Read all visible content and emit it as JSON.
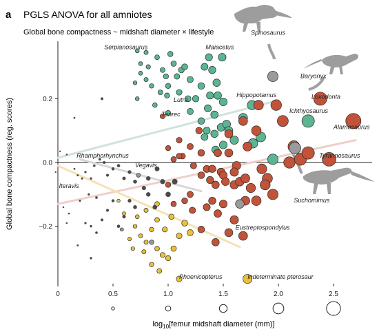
{
  "panel": {
    "letter": "a",
    "title": "PGLS  ANOVA for all amniotes",
    "subtitle": "Global bone compactness ~ midshaft diameter × lifestyle"
  },
  "chart_data": {
    "type": "scatter",
    "xlabel_pre": "log",
    "xlabel_sub": "10",
    "xlabel_post": "[femur midshaft diameter (mm)]",
    "ylabel": "Global bone compactness (reg. scores)",
    "xlim": [
      0,
      2.85
    ],
    "ylim": [
      -0.38,
      0.38
    ],
    "x_ticks": [
      "0",
      "0.5",
      "1.0",
      "1.5",
      "2.0",
      "2.5"
    ],
    "x_tick_values": [
      0,
      0.5,
      1.0,
      1.5,
      2.0,
      2.5
    ],
    "y_ticks": [
      "0.2",
      "0.0",
      "−0.2"
    ],
    "y_tick_values": [
      0.2,
      0.0,
      -0.2
    ],
    "zero_line": true,
    "size_legend": [
      0.5,
      1.0,
      1.5,
      2.0,
      2.5
    ],
    "colors": {
      "aquatic": "#5bb592",
      "semi": "#c0533a",
      "terrestrial": "#4a4a4a",
      "flying": "#e9c03a",
      "grey": "#9a9a9a"
    },
    "regression_lines": [
      {
        "group": "aquatic",
        "color": "#cfe3db",
        "x1": 0.0,
        "y1": 0.015,
        "x2": 2.0,
        "y2": 0.195
      },
      {
        "group": "semi",
        "color": "#efcfc7",
        "x1": 0.0,
        "y1": -0.13,
        "x2": 2.7,
        "y2": 0.07
      },
      {
        "group": "terrestrial",
        "color": "#d7d7d7",
        "x1": 0.2,
        "y1": 0.01,
        "x2": 1.3,
        "y2": -0.09
      },
      {
        "group": "flying",
        "color": "#f4e2b5",
        "x1": 0.0,
        "y1": -0.01,
        "x2": 1.65,
        "y2": -0.265
      }
    ],
    "labels": [
      {
        "text": "Serpianosaurus",
        "x": 0.42,
        "y": 0.355
      },
      {
        "text": "Maiacetus",
        "x": 1.34,
        "y": 0.355
      },
      {
        "text": "Spinosaurus",
        "x": 1.75,
        "y": 0.4
      },
      {
        "text": "Baryonyx",
        "x": 2.2,
        "y": 0.265
      },
      {
        "text": "Lutra",
        "x": 1.05,
        "y": 0.19
      },
      {
        "text": "Hippopotamus",
        "x": 1.62,
        "y": 0.205
      },
      {
        "text": "Loxodonta",
        "x": 2.3,
        "y": 0.2
      },
      {
        "text": "Tenrec",
        "x": 0.94,
        "y": 0.145
      },
      {
        "text": "Ichthyosaurus",
        "x": 2.1,
        "y": 0.155
      },
      {
        "text": "Alamosaurus",
        "x": 2.5,
        "y": 0.105
      },
      {
        "text": "Rhamphorhynchus",
        "x": 0.17,
        "y": 0.015
      },
      {
        "text": "Tyrannosaurus",
        "x": 2.37,
        "y": 0.015
      },
      {
        "text": "Vegavis",
        "x": 0.7,
        "y": -0.015
      },
      {
        "text": "Iteravis",
        "x": 0.01,
        "y": -0.08
      },
      {
        "text": "Suchomimus",
        "x": 2.14,
        "y": -0.125
      },
      {
        "text": "Eustreptospondylus",
        "x": 1.61,
        "y": -0.21
      },
      {
        "text": "Phoenicopterus",
        "x": 1.1,
        "y": -0.365
      },
      {
        "text": "Indeterminate pterosaur",
        "x": 1.72,
        "y": -0.365
      }
    ],
    "series": [
      {
        "name": "",
        "group": "aquatic",
        "points": [
          [
            0.72,
            0.35
          ],
          [
            0.75,
            0.31
          ],
          [
            0.8,
            0.345
          ],
          [
            0.82,
            0.3
          ],
          [
            0.75,
            0.28
          ],
          [
            0.7,
            0.25
          ],
          [
            0.8,
            0.26
          ],
          [
            0.85,
            0.24
          ],
          [
            0.9,
            0.33
          ],
          [
            0.95,
            0.29
          ],
          [
            0.93,
            0.22
          ],
          [
            0.72,
            0.2
          ],
          [
            0.88,
            0.18
          ],
          [
            0.98,
            0.27
          ],
          [
            1.0,
            0.24
          ],
          [
            1.05,
            0.31
          ],
          [
            1.08,
            0.27
          ],
          [
            1.02,
            0.34
          ],
          [
            1.1,
            0.22
          ],
          [
            1.12,
            0.29
          ],
          [
            1.15,
            0.3
          ],
          [
            1.2,
            0.26
          ],
          [
            1.25,
            0.2
          ],
          [
            1.3,
            0.24
          ],
          [
            1.33,
            0.3
          ],
          [
            1.37,
            0.33
          ],
          [
            1.4,
            0.29
          ],
          [
            1.44,
            0.25
          ],
          [
            1.49,
            0.33
          ],
          [
            1.38,
            0.21
          ],
          [
            1.45,
            0.21
          ],
          [
            1.5,
            0.19
          ],
          [
            1.36,
            0.17
          ],
          [
            1.42,
            0.15
          ],
          [
            1.2,
            0.16
          ],
          [
            1.18,
            0.2
          ],
          [
            1.3,
            0.13
          ],
          [
            1.35,
            0.1
          ],
          [
            1.33,
            0.08
          ],
          [
            1.42,
            0.09
          ],
          [
            1.48,
            0.11
          ],
          [
            1.53,
            0.12
          ],
          [
            1.55,
            0.1
          ],
          [
            1.5,
            0.055
          ],
          [
            1.43,
            0.04
          ],
          [
            1.6,
            0.07
          ],
          [
            1.68,
            0.14
          ],
          [
            1.76,
            0.18
          ],
          [
            1.84,
            0.08
          ],
          [
            1.77,
            0.06
          ],
          [
            1.95,
            0.01
          ],
          [
            2.27,
            0.13
          ],
          [
            0.99,
            0.21
          ],
          [
            1.0,
            0.155
          ]
        ]
      },
      {
        "name": "",
        "group": "semi",
        "points": [
          [
            0.95,
            0.145
          ],
          [
            1.0,
            0.045
          ],
          [
            1.05,
            0.01
          ],
          [
            1.1,
            0.07
          ],
          [
            1.13,
            0.02
          ],
          [
            1.2,
            0.05
          ],
          [
            1.23,
            -0.01
          ],
          [
            1.28,
            0.1
          ],
          [
            1.3,
            0.03
          ],
          [
            1.35,
            -0.02
          ],
          [
            1.38,
            -0.055
          ],
          [
            1.43,
            -0.07
          ],
          [
            1.48,
            -0.03
          ],
          [
            1.5,
            -0.04
          ],
          [
            1.55,
            0.03
          ],
          [
            1.6,
            -0.07
          ],
          [
            1.65,
            -0.06
          ],
          [
            1.7,
            -0.05
          ],
          [
            1.75,
            -0.08
          ],
          [
            1.68,
            0.13
          ],
          [
            1.72,
            0.05
          ],
          [
            1.8,
            0.1
          ],
          [
            1.82,
            0.18
          ],
          [
            1.9,
            -0.05
          ],
          [
            1.98,
            0.18
          ],
          [
            2.04,
            0.13
          ],
          [
            2.1,
            0.0
          ],
          [
            2.14,
            0.05
          ],
          [
            2.2,
            0.01
          ],
          [
            2.27,
            0.03
          ],
          [
            2.38,
            0.2
          ],
          [
            2.46,
            0.01
          ],
          [
            2.68,
            0.13
          ],
          [
            1.55,
            0.09
          ],
          [
            1.62,
            -0.01
          ],
          [
            1.85,
            -0.02
          ],
          [
            1.95,
            -0.1
          ],
          [
            1.35,
            -0.14
          ],
          [
            1.45,
            -0.16
          ],
          [
            1.3,
            -0.21
          ],
          [
            1.4,
            -0.12
          ],
          [
            1.5,
            -0.13
          ],
          [
            1.6,
            -0.18
          ],
          [
            1.7,
            -0.12
          ],
          [
            1.8,
            -0.12
          ],
          [
            1.88,
            -0.07
          ],
          [
            1.68,
            -0.23
          ],
          [
            1.55,
            -0.22
          ],
          [
            1.43,
            -0.25
          ],
          [
            1.6,
            -0.03
          ],
          [
            1.0,
            -0.07
          ],
          [
            1.05,
            -0.13
          ],
          [
            1.2,
            -0.1
          ],
          [
            1.22,
            -0.15
          ],
          [
            1.15,
            -0.12
          ],
          [
            1.1,
            0.02
          ],
          [
            1.3,
            -0.04
          ],
          [
            1.4,
            -0.02
          ],
          [
            1.45,
            0.03
          ],
          [
            1.52,
            -0.06
          ]
        ]
      },
      {
        "name": "",
        "group": "terrestrial",
        "points": [
          [
            0.02,
            0.035
          ],
          [
            0.08,
            0.025
          ],
          [
            0.15,
            -0.02
          ],
          [
            0.18,
            -0.04
          ],
          [
            0.22,
            -0.05
          ],
          [
            0.25,
            -0.03
          ],
          [
            0.3,
            -0.05
          ],
          [
            0.33,
            -0.01
          ],
          [
            0.38,
            0.01
          ],
          [
            0.42,
            0.0
          ],
          [
            0.45,
            -0.04
          ],
          [
            0.5,
            -0.02
          ],
          [
            0.55,
            -0.01
          ],
          [
            0.6,
            -0.05
          ],
          [
            0.65,
            -0.03
          ],
          [
            0.7,
            -0.06
          ],
          [
            0.78,
            -0.08
          ],
          [
            0.82,
            -0.05
          ],
          [
            0.9,
            -0.02
          ],
          [
            0.95,
            -0.06
          ],
          [
            1.0,
            -0.1
          ],
          [
            1.06,
            -0.06
          ],
          [
            0.25,
            -0.19
          ],
          [
            0.3,
            -0.2
          ],
          [
            0.35,
            -0.22
          ],
          [
            0.4,
            -0.18
          ],
          [
            0.45,
            -0.15
          ],
          [
            0.5,
            -0.12
          ],
          [
            0.55,
            -0.2
          ],
          [
            0.6,
            -0.17
          ],
          [
            0.65,
            -0.12
          ],
          [
            0.08,
            -0.19
          ],
          [
            0.18,
            -0.26
          ],
          [
            0.3,
            -0.3
          ],
          [
            0.4,
            0.2
          ],
          [
            0.15,
            0.14
          ],
          [
            -0.02,
            -0.03
          ],
          [
            0.05,
            -0.14
          ],
          [
            0.1,
            -0.16
          ],
          [
            0.28,
            -0.1
          ],
          [
            0.35,
            -0.11
          ],
          [
            0.2,
            -0.12
          ],
          [
            0.7,
            -0.14
          ],
          [
            0.82,
            -0.1
          ],
          [
            0.88,
            -0.14
          ]
        ]
      },
      {
        "name": "",
        "group": "flying",
        "points": [
          [
            0.55,
            -0.12
          ],
          [
            0.6,
            -0.16
          ],
          [
            0.7,
            -0.2
          ],
          [
            0.75,
            -0.23
          ],
          [
            0.8,
            -0.25
          ],
          [
            0.85,
            -0.21
          ],
          [
            0.9,
            -0.27
          ],
          [
            0.95,
            -0.29
          ],
          [
            1.0,
            -0.3
          ],
          [
            0.92,
            -0.34
          ],
          [
            1.05,
            -0.27
          ],
          [
            1.1,
            -0.23
          ],
          [
            1.15,
            -0.19
          ],
          [
            1.2,
            -0.22
          ],
          [
            0.65,
            -0.24
          ],
          [
            0.72,
            -0.17
          ],
          [
            0.8,
            -0.15
          ],
          [
            0.9,
            -0.18
          ],
          [
            0.97,
            -0.21
          ],
          [
            1.03,
            -0.17
          ],
          [
            0.85,
            -0.32
          ],
          [
            1.1,
            -0.365
          ],
          [
            1.72,
            -0.365
          ],
          [
            0.9,
            -0.13
          ],
          [
            0.78,
            -0.28
          ],
          [
            0.68,
            -0.27
          ]
        ]
      },
      {
        "name": "",
        "group": "grey",
        "points": [
          [
            1.95,
            0.27
          ],
          [
            2.15,
            0.045
          ],
          [
            1.65,
            -0.13
          ],
          [
            0.73,
            -0.04
          ],
          [
            0.58,
            -0.21
          ],
          [
            0.85,
            -0.25
          ]
        ]
      }
    ]
  }
}
